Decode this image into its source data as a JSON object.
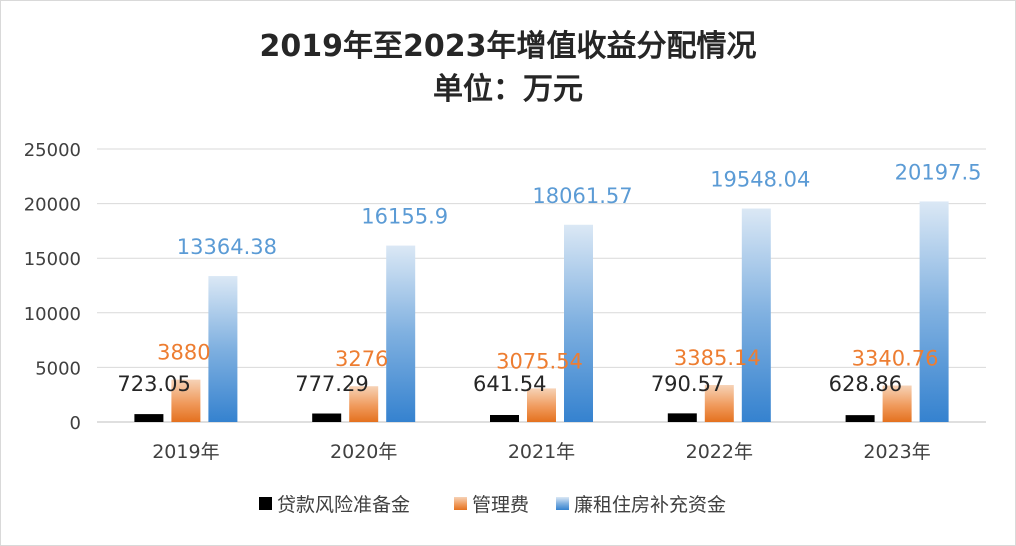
{
  "chart_data": {
    "type": "bar",
    "title": "2019年至2023年增值收益分配情况",
    "subtitle": "单位：万元",
    "categories": [
      "2019年",
      "2020年",
      "2021年",
      "2022年",
      "2023年"
    ],
    "series": [
      {
        "name": "贷款风险准备金",
        "values": [
          723.05,
          777.29,
          641.54,
          790.57,
          628.86
        ],
        "labels": [
          "723.05",
          "777.29",
          "641.54",
          "790.57",
          "628.86"
        ],
        "color": "#000000",
        "label_color": "#262626"
      },
      {
        "name": "管理费",
        "values": [
          3880,
          3276,
          3075.54,
          3385.14,
          3340.76
        ],
        "labels": [
          "3880",
          "3276",
          "3075.54",
          "3385.14",
          "3340.76"
        ],
        "color": "#ed7d31",
        "label_color": "#ed7d31"
      },
      {
        "name": "廉租住房补充资金",
        "values": [
          13364.38,
          16155.9,
          18061.57,
          19548.04,
          20197.5
        ],
        "labels": [
          "13364.38",
          "16155.9",
          "18061.57",
          "19548.04",
          "20197.5"
        ],
        "color": "#5b9bd5",
        "label_color": "#5b9bd5"
      }
    ],
    "ylim": [
      0,
      25000
    ],
    "y_ticks": [
      0,
      5000,
      10000,
      15000,
      20000,
      25000
    ],
    "xlabel": "",
    "ylabel": "",
    "grid": true,
    "legend_position": "bottom"
  }
}
